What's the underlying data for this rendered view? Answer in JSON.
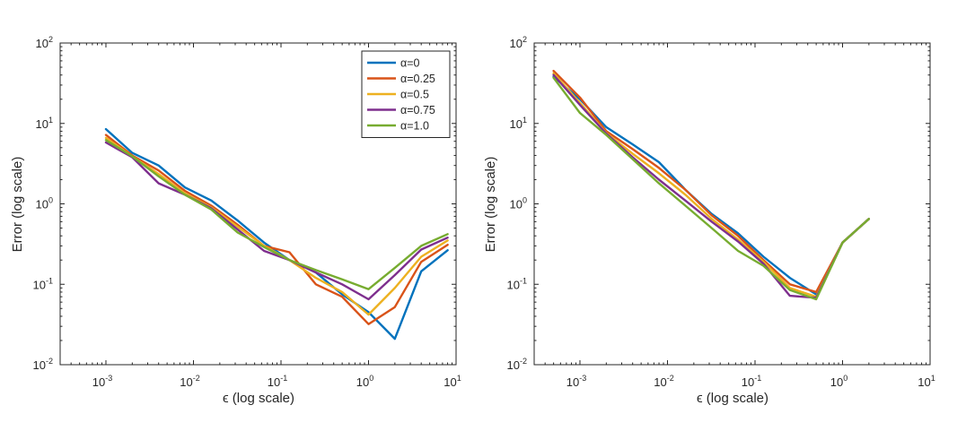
{
  "chart_data": [
    {
      "type": "line",
      "title": "",
      "xlabel": "ϵ (log scale)",
      "ylabel": "Error (log scale)",
      "xscale": "log",
      "yscale": "log",
      "xlim": [
        0.0003,
        10
      ],
      "ylim": [
        0.01,
        100
      ],
      "xticks": [
        {
          "value": 0.001,
          "base": "10",
          "exp": "-3"
        },
        {
          "value": 0.01,
          "base": "10",
          "exp": "-2"
        },
        {
          "value": 0.1,
          "base": "10",
          "exp": "-1"
        },
        {
          "value": 1,
          "base": "10",
          "exp": "0"
        },
        {
          "value": 10,
          "base": "10",
          "exp": "1"
        }
      ],
      "yticks": [
        {
          "value": 0.01,
          "base": "10",
          "exp": "-2"
        },
        {
          "value": 0.1,
          "base": "10",
          "exp": "-1"
        },
        {
          "value": 1,
          "base": "10",
          "exp": "0"
        },
        {
          "value": 10,
          "base": "10",
          "exp": "1"
        },
        {
          "value": 100,
          "base": "10",
          "exp": "2"
        }
      ],
      "grid": false,
      "legend": "top-right",
      "series": [
        {
          "name": "α=0",
          "color": "#0072BD",
          "x": [
            0.001,
            0.002,
            0.004,
            0.008,
            0.016,
            0.032,
            0.064,
            0.125,
            0.25,
            0.5,
            1,
            2,
            4,
            8
          ],
          "y": [
            8.5,
            4.3,
            3.0,
            1.6,
            1.1,
            0.62,
            0.33,
            0.2,
            0.14,
            0.075,
            0.045,
            0.021,
            0.145,
            0.265
          ]
        },
        {
          "name": "α=0.25",
          "color": "#D95319",
          "x": [
            0.001,
            0.002,
            0.004,
            0.008,
            0.016,
            0.032,
            0.064,
            0.125,
            0.25,
            0.5,
            1,
            2,
            4,
            8
          ],
          "y": [
            7.2,
            4.0,
            2.6,
            1.45,
            0.95,
            0.55,
            0.3,
            0.25,
            0.1,
            0.07,
            0.032,
            0.052,
            0.19,
            0.31
          ]
        },
        {
          "name": "α=0.5",
          "color": "#EDB120",
          "x": [
            0.001,
            0.002,
            0.004,
            0.008,
            0.016,
            0.032,
            0.064,
            0.125,
            0.25,
            0.5,
            1,
            2,
            4,
            8
          ],
          "y": [
            6.6,
            3.9,
            2.35,
            1.35,
            0.9,
            0.52,
            0.3,
            0.2,
            0.12,
            0.08,
            0.042,
            0.09,
            0.22,
            0.35
          ]
        },
        {
          "name": "α=0.75",
          "color": "#7E2F8E",
          "x": [
            0.001,
            0.002,
            0.004,
            0.008,
            0.016,
            0.032,
            0.064,
            0.125,
            0.25,
            0.5,
            1,
            2,
            4,
            8
          ],
          "y": [
            5.8,
            3.8,
            1.8,
            1.3,
            0.88,
            0.48,
            0.26,
            0.2,
            0.14,
            0.1,
            0.065,
            0.13,
            0.27,
            0.38
          ]
        },
        {
          "name": "α=1.0",
          "color": "#77AC30",
          "x": [
            0.001,
            0.002,
            0.004,
            0.008,
            0.016,
            0.032,
            0.064,
            0.125,
            0.25,
            0.5,
            1,
            2,
            4,
            8
          ],
          "y": [
            6.2,
            3.9,
            2.2,
            1.3,
            0.85,
            0.44,
            0.29,
            0.2,
            0.15,
            0.115,
            0.087,
            0.16,
            0.3,
            0.42
          ]
        }
      ]
    },
    {
      "type": "line",
      "title": "",
      "xlabel": "ϵ (log scale)",
      "ylabel": "Error (log scale)",
      "xscale": "log",
      "yscale": "log",
      "xlim": [
        0.0003,
        10
      ],
      "ylim": [
        0.01,
        100
      ],
      "xticks": [
        {
          "value": 0.001,
          "base": "10",
          "exp": "-3"
        },
        {
          "value": 0.01,
          "base": "10",
          "exp": "-2"
        },
        {
          "value": 0.1,
          "base": "10",
          "exp": "-1"
        },
        {
          "value": 1,
          "base": "10",
          "exp": "0"
        },
        {
          "value": 10,
          "base": "10",
          "exp": "1"
        }
      ],
      "yticks": [
        {
          "value": 0.01,
          "base": "10",
          "exp": "-2"
        },
        {
          "value": 0.1,
          "base": "10",
          "exp": "-1"
        },
        {
          "value": 1,
          "base": "10",
          "exp": "0"
        },
        {
          "value": 10,
          "base": "10",
          "exp": "1"
        },
        {
          "value": 100,
          "base": "10",
          "exp": "2"
        }
      ],
      "grid": false,
      "legend": "none",
      "series": [
        {
          "name": "α=0",
          "color": "#0072BD",
          "x": [
            0.0005,
            0.001,
            0.002,
            0.004,
            0.008,
            0.016,
            0.032,
            0.064,
            0.125,
            0.25,
            0.5,
            1,
            2
          ],
          "y": [
            38,
            20,
            9.0,
            5.5,
            3.3,
            1.5,
            0.75,
            0.43,
            0.22,
            0.12,
            0.075,
            0.33,
            0.65
          ]
        },
        {
          "name": "α=0.25",
          "color": "#D95319",
          "x": [
            0.0005,
            0.001,
            0.002,
            0.004,
            0.008,
            0.016,
            0.032,
            0.064,
            0.125,
            0.25,
            0.5,
            1,
            2
          ],
          "y": [
            45,
            21,
            8.0,
            4.8,
            2.8,
            1.5,
            0.72,
            0.4,
            0.2,
            0.1,
            0.08,
            0.33,
            0.65
          ]
        },
        {
          "name": "α=0.5",
          "color": "#EDB120",
          "x": [
            0.0005,
            0.001,
            0.002,
            0.004,
            0.008,
            0.016,
            0.032,
            0.064,
            0.125,
            0.25,
            0.5,
            1,
            2
          ],
          "y": [
            42,
            18,
            7.6,
            4.2,
            2.4,
            1.3,
            0.65,
            0.36,
            0.19,
            0.09,
            0.07,
            0.33,
            0.65
          ]
        },
        {
          "name": "α=0.75",
          "color": "#7E2F8E",
          "x": [
            0.0005,
            0.001,
            0.002,
            0.004,
            0.008,
            0.016,
            0.032,
            0.064,
            0.125,
            0.25,
            0.5,
            1,
            2
          ],
          "y": [
            40,
            17,
            7.5,
            3.8,
            2.0,
            1.1,
            0.6,
            0.34,
            0.18,
            0.072,
            0.068,
            0.33,
            0.65
          ]
        },
        {
          "name": "α=1.0",
          "color": "#77AC30",
          "x": [
            0.0005,
            0.001,
            0.002,
            0.004,
            0.008,
            0.016,
            0.032,
            0.064,
            0.125,
            0.25,
            0.5,
            1,
            2
          ],
          "y": [
            37,
            13.5,
            7.2,
            3.6,
            1.8,
            0.95,
            0.5,
            0.26,
            0.17,
            0.085,
            0.065,
            0.33,
            0.65
          ]
        }
      ]
    }
  ]
}
